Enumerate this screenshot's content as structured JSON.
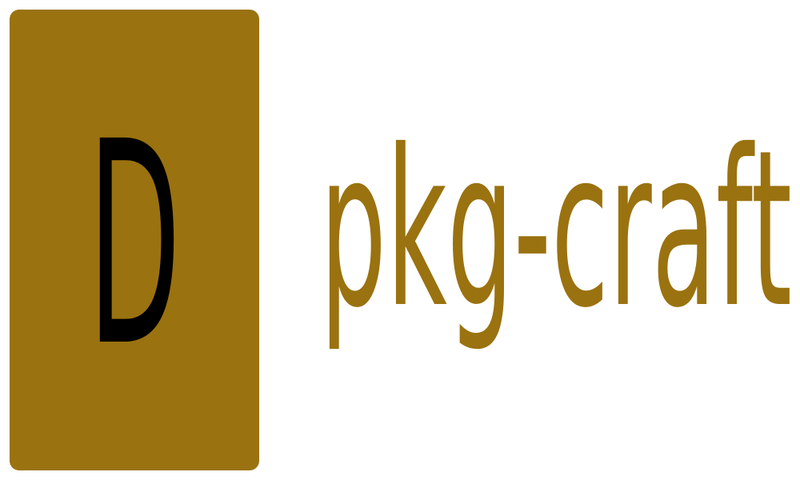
{
  "logo": {
    "letter": "D",
    "name": "pkg-craft"
  }
}
